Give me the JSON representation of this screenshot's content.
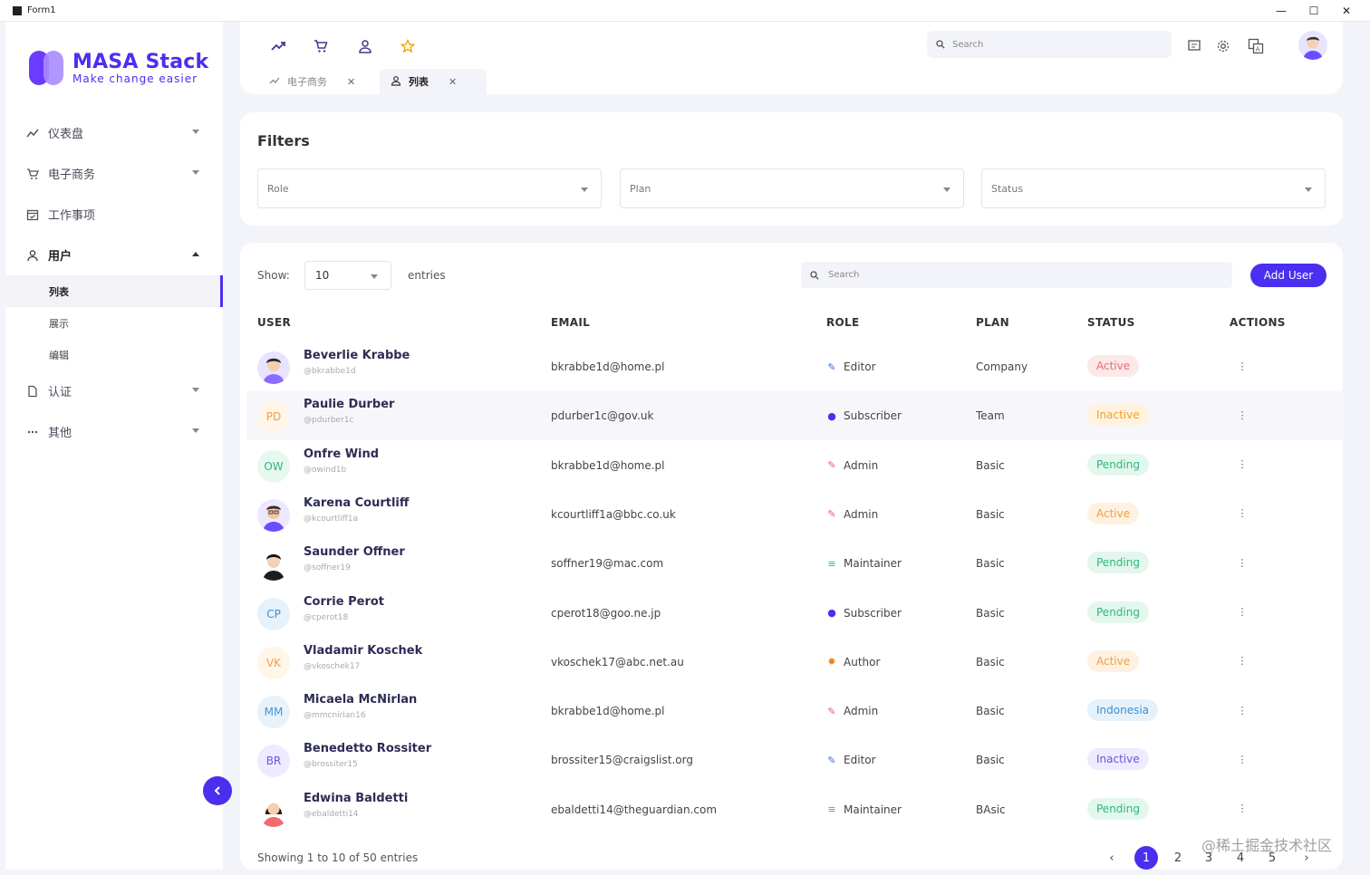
{
  "window": {
    "title": "Form1",
    "controls": [
      "—",
      "☐",
      "✕"
    ]
  },
  "logo": {
    "title": "MASA Stack",
    "subtitle": "Make change easier"
  },
  "sidebar": {
    "items": [
      {
        "label": "仪表盘",
        "icon": "trend-icon"
      },
      {
        "label": "电子商务",
        "icon": "cart-icon"
      },
      {
        "label": "工作事项",
        "icon": "calendar-icon"
      },
      {
        "label": "用户",
        "icon": "user-icon"
      },
      {
        "label": "认证",
        "icon": "document-icon"
      },
      {
        "label": "其他",
        "icon": "more-icon"
      }
    ],
    "sub_items": [
      {
        "label": "列表"
      },
      {
        "label": "展示"
      },
      {
        "label": "编辑"
      }
    ]
  },
  "topbar": {
    "search_placeholder": "Search",
    "tabs": [
      {
        "label": "电子商务"
      },
      {
        "label": "列表"
      }
    ]
  },
  "filters": {
    "title": "Filters",
    "role_placeholder": "Role",
    "plan_placeholder": "Plan",
    "status_placeholder": "Status"
  },
  "table": {
    "show_label": "Show:",
    "entries_value": "10",
    "entries_label": "entries",
    "search_placeholder": "Search",
    "add_user_label": "Add User",
    "headers": {
      "user": "USER",
      "email": "EMAIL",
      "role": "ROLE",
      "plan": "PLAN",
      "status": "STATUS",
      "actions": "ACTIONS"
    },
    "rows": [
      {
        "name": "Beverlie Krabbe",
        "handle": "@bkrabbe1d",
        "email": "bkrabbe1d@home.pl",
        "role": "Editor",
        "plan": "Company",
        "status": "Active",
        "initials": ""
      },
      {
        "name": "Paulie Durber",
        "handle": "@pdurber1c",
        "email": "pdurber1c@gov.uk",
        "role": "Subscriber",
        "plan": "Team",
        "status": "Inactive",
        "initials": "PD"
      },
      {
        "name": "Onfre Wind",
        "handle": "@owind1b",
        "email": "bkrabbe1d@home.pl",
        "role": "Admin",
        "plan": "Basic",
        "status": "Pending",
        "initials": "OW"
      },
      {
        "name": "Karena Courtliff",
        "handle": "@kcourtliff1a",
        "email": "kcourtliff1a@bbc.co.uk",
        "role": "Admin",
        "plan": "Basic",
        "status": "Active",
        "initials": ""
      },
      {
        "name": "Saunder Offner",
        "handle": "@soffner19",
        "email": "soffner19@mac.com",
        "role": "Maintainer",
        "plan": "Basic",
        "status": "Pending",
        "initials": ""
      },
      {
        "name": "Corrie Perot",
        "handle": "@cperot18",
        "email": "cperot18@goo.ne.jp",
        "role": "Subscriber",
        "plan": "Basic",
        "status": "Pending",
        "initials": "CP"
      },
      {
        "name": "Vladamir Koschek",
        "handle": "@vkoschek17",
        "email": "vkoschek17@abc.net.au",
        "role": "Author",
        "plan": "Basic",
        "status": "Active",
        "initials": "VK"
      },
      {
        "name": "Micaela McNirlan",
        "handle": "@mmcnirlan16",
        "email": "bkrabbe1d@home.pl",
        "role": "Admin",
        "plan": "Basic",
        "status": "Indonesia",
        "initials": "MM"
      },
      {
        "name": "Benedetto Rossiter",
        "handle": "@brossiter15",
        "email": "brossiter15@craigslist.org",
        "role": "Editor",
        "plan": "Basic",
        "status": "Inactive",
        "initials": "BR"
      },
      {
        "name": "Edwina Baldetti",
        "handle": "@ebaldetti14",
        "email": "ebaldetti14@theguardian.com",
        "role": "Maintainer",
        "plan": "BAsic",
        "status": "Pending",
        "initials": ""
      }
    ],
    "showing_text": "Showing 1 to 10 of 50 entries",
    "pages": [
      "1",
      "2",
      "3",
      "4",
      "5"
    ],
    "prev_symbol": "‹",
    "next_symbol": "›"
  },
  "watermark": "@稀土掘金技术社区",
  "colors": {
    "accent": "#4a2ff0",
    "background": "#f3f4f9"
  }
}
